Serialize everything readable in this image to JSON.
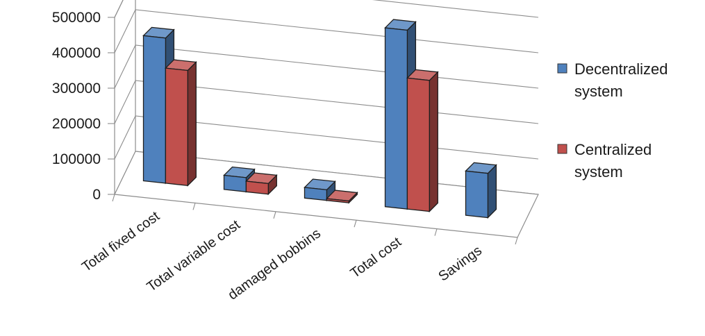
{
  "chart_data": {
    "type": "bar",
    "title": "",
    "xlabel": "",
    "ylabel": "",
    "ylim": [
      0,
      500000
    ],
    "yticks": [
      0,
      100000,
      200000,
      300000,
      400000,
      500000
    ],
    "ytick_labels": [
      "0",
      "100000",
      "200000",
      "300000",
      "400000",
      "500000"
    ],
    "grid": true,
    "legend_position": "right",
    "categories": [
      "Total fixed cost",
      "Total variable cost",
      "damaged bobbins",
      "Total cost",
      "Savings"
    ],
    "series": [
      {
        "name": "Decentralized system",
        "color": "#4f81bd",
        "values": [
          410000,
          40000,
          30000,
          505000,
          125000
        ]
      },
      {
        "name": "Centralized system",
        "color": "#c0504d",
        "values": [
          325000,
          30000,
          5000,
          370000,
          null
        ]
      }
    ],
    "legend": [
      {
        "lines": [
          "Decentralized",
          "system"
        ],
        "color": "#4f81bd"
      },
      {
        "lines": [
          "Centralized",
          "system"
        ],
        "color": "#c0504d"
      }
    ]
  }
}
